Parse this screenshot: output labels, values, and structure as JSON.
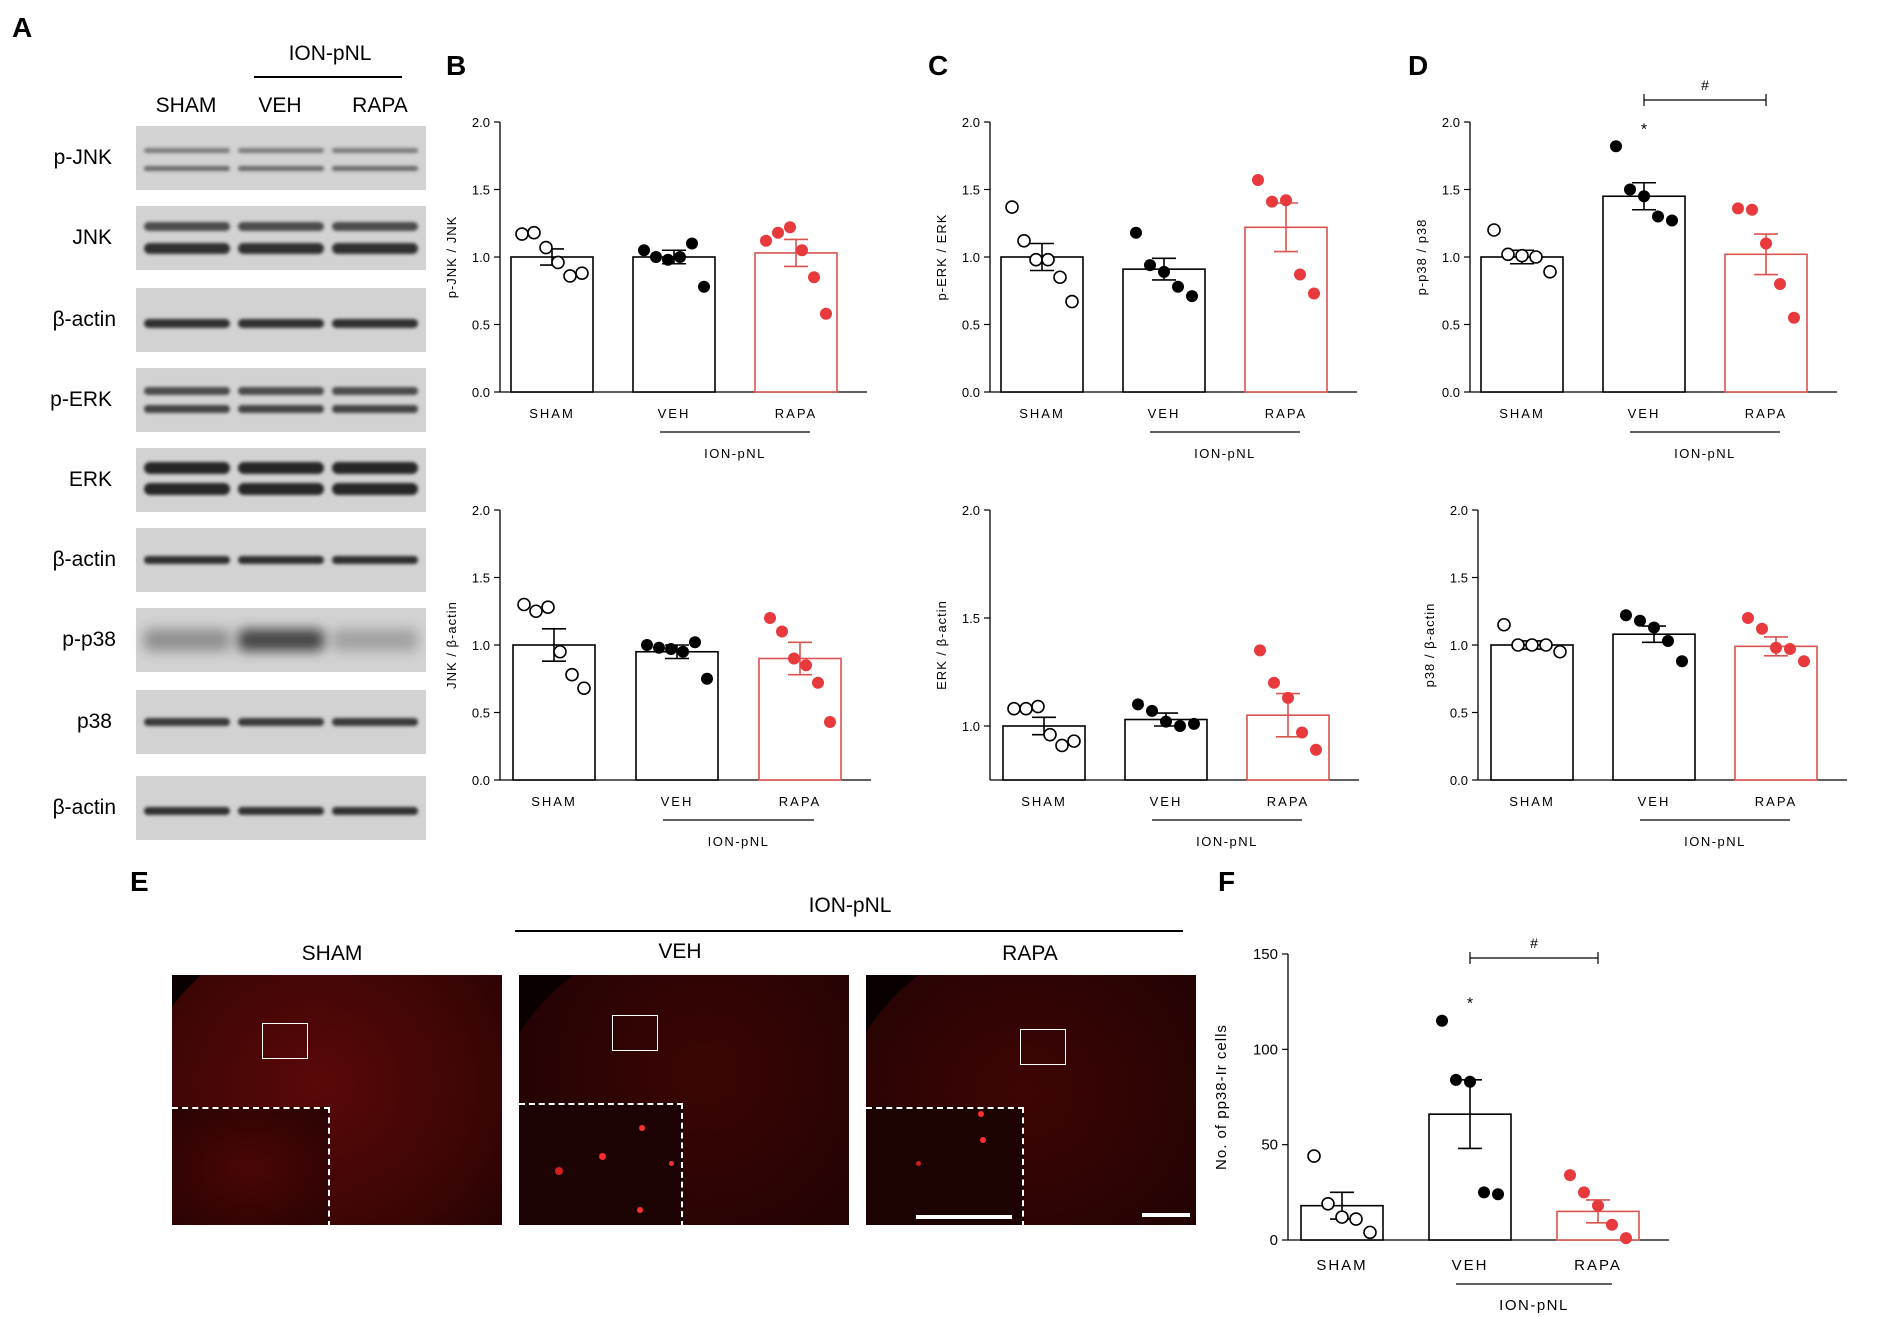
{
  "panel_letters": {
    "a": "A",
    "b": "B",
    "c": "C",
    "d": "D",
    "e": "E",
    "f": "F"
  },
  "western": {
    "group_top": "ION-pNL",
    "columns": [
      "SHAM",
      "VEH",
      "RAPA"
    ],
    "rows": [
      "p-JNK",
      "JNK",
      "β-actin",
      "p-ERK",
      "ERK",
      "β-actin",
      "p-p38",
      "p38",
      "β-actin"
    ]
  },
  "colors": {
    "black": "#000000",
    "red": "#e8393d",
    "red_bar": "#d9534f"
  },
  "micrographs": {
    "group": "ION-pNL",
    "labels": [
      "SHAM",
      "VEH",
      "RAPA"
    ],
    "icons": [
      "micrograph-sham",
      "micrograph-veh",
      "micrograph-rapa"
    ]
  },
  "chart_data": [
    {
      "id": "B-top",
      "type": "bar",
      "categories": [
        "SHAM",
        "VEH",
        "RAPA"
      ],
      "values": [
        1.0,
        1.0,
        1.03
      ],
      "sem": [
        0.06,
        0.05,
        0.1
      ],
      "points": [
        [
          1.17,
          1.18,
          1.07,
          0.96,
          0.86,
          0.88
        ],
        [
          1.05,
          1.0,
          0.98,
          1.0,
          1.1,
          0.78
        ],
        [
          1.12,
          1.18,
          1.22,
          1.05,
          0.85,
          0.58
        ]
      ],
      "ylabel": "p-JNK / JNK",
      "ylim": [
        0,
        2.0
      ],
      "yticks": [
        0.0,
        0.5,
        1.0,
        1.5,
        2.0
      ],
      "group_label": "ION-pNL",
      "annotations": []
    },
    {
      "id": "B-bottom",
      "type": "bar",
      "categories": [
        "SHAM",
        "VEH",
        "RAPA"
      ],
      "values": [
        1.0,
        0.95,
        0.9
      ],
      "sem": [
        0.12,
        0.05,
        0.12
      ],
      "points": [
        [
          1.3,
          1.25,
          1.28,
          0.95,
          0.78,
          0.68
        ],
        [
          1.0,
          0.98,
          0.97,
          0.95,
          1.02,
          0.75
        ],
        [
          1.2,
          1.1,
          0.9,
          0.85,
          0.72,
          0.43
        ]
      ],
      "ylabel": "JNK / β-actin",
      "ylim": [
        0,
        2.0
      ],
      "yticks": [
        0.0,
        0.5,
        1.0,
        1.5,
        2.0
      ],
      "group_label": "ION-pNL",
      "annotations": []
    },
    {
      "id": "C-top",
      "type": "bar",
      "categories": [
        "SHAM",
        "VEH",
        "RAPA"
      ],
      "values": [
        1.0,
        0.91,
        1.22
      ],
      "sem": [
        0.1,
        0.08,
        0.18
      ],
      "points": [
        [
          1.37,
          1.12,
          0.98,
          0.98,
          0.85,
          0.67
        ],
        [
          1.18,
          0.94,
          0.89,
          0.78,
          0.71
        ],
        [
          1.57,
          1.41,
          1.42,
          0.87,
          0.73
        ]
      ],
      "ylabel": "p-ERK / ERK",
      "ylim": [
        0,
        2.0
      ],
      "yticks": [
        0.0,
        0.5,
        1.0,
        1.5,
        2.0
      ],
      "group_label": "ION-pNL",
      "annotations": []
    },
    {
      "id": "C-bottom",
      "type": "bar",
      "categories": [
        "SHAM",
        "VEH",
        "RAPA"
      ],
      "values": [
        1.0,
        1.03,
        1.05
      ],
      "sem": [
        0.04,
        0.03,
        0.1
      ],
      "points": [
        [
          1.08,
          1.08,
          1.09,
          0.96,
          0.91,
          0.93
        ],
        [
          1.1,
          1.07,
          1.02,
          1.0,
          1.01
        ],
        [
          1.35,
          1.2,
          1.13,
          0.97,
          0.89
        ]
      ],
      "ylabel": "ERK / β-actin",
      "ylim": [
        0.75,
        2.0
      ],
      "yticks": [
        1.0,
        1.5,
        2.0
      ],
      "group_label": "ION-pNL",
      "annotations": []
    },
    {
      "id": "D-top",
      "type": "bar",
      "categories": [
        "SHAM",
        "VEH",
        "RAPA"
      ],
      "values": [
        1.0,
        1.45,
        1.02
      ],
      "sem": [
        0.05,
        0.1,
        0.15
      ],
      "points": [
        [
          1.2,
          1.02,
          1.01,
          1.0,
          0.89
        ],
        [
          1.82,
          1.5,
          1.45,
          1.3,
          1.27
        ],
        [
          1.36,
          1.35,
          1.1,
          0.8,
          0.55
        ]
      ],
      "ylabel": "p-p38 / p38",
      "ylim": [
        0,
        2.0
      ],
      "yticks": [
        0.0,
        0.5,
        1.0,
        1.5,
        2.0
      ],
      "group_label": "ION-pNL",
      "annotations": [
        {
          "text": "*",
          "over": "VEH"
        },
        {
          "text": "#",
          "from": "VEH",
          "to": "RAPA"
        }
      ]
    },
    {
      "id": "D-bottom",
      "type": "bar",
      "categories": [
        "SHAM",
        "VEH",
        "RAPA"
      ],
      "values": [
        1.0,
        1.08,
        0.99
      ],
      "sem": [
        0.03,
        0.06,
        0.07
      ],
      "points": [
        [
          1.15,
          1.0,
          1.0,
          1.0,
          0.95
        ],
        [
          1.22,
          1.18,
          1.13,
          1.03,
          0.88
        ],
        [
          1.2,
          1.12,
          0.98,
          0.97,
          0.88
        ]
      ],
      "ylabel": "p38 / β-actin",
      "ylim": [
        0,
        2.0
      ],
      "yticks": [
        0.0,
        0.5,
        1.0,
        1.5,
        2.0
      ],
      "group_label": "ION-pNL",
      "annotations": []
    },
    {
      "id": "F",
      "type": "bar",
      "categories": [
        "SHAM",
        "VEH",
        "RAPA"
      ],
      "values": [
        18,
        66,
        15
      ],
      "sem": [
        7,
        18,
        6
      ],
      "points": [
        [
          44,
          19,
          12,
          11,
          4
        ],
        [
          115,
          84,
          83,
          25,
          24
        ],
        [
          34,
          25,
          18,
          8,
          1
        ]
      ],
      "ylabel": "No. of pp38-Ir cells",
      "ylim": [
        0,
        150
      ],
      "yticks": [
        0,
        50,
        100,
        150
      ],
      "group_label": "ION-pNL",
      "annotations": [
        {
          "text": "*",
          "over": "VEH"
        },
        {
          "text": "#",
          "from": "VEH",
          "to": "RAPA"
        }
      ]
    }
  ]
}
